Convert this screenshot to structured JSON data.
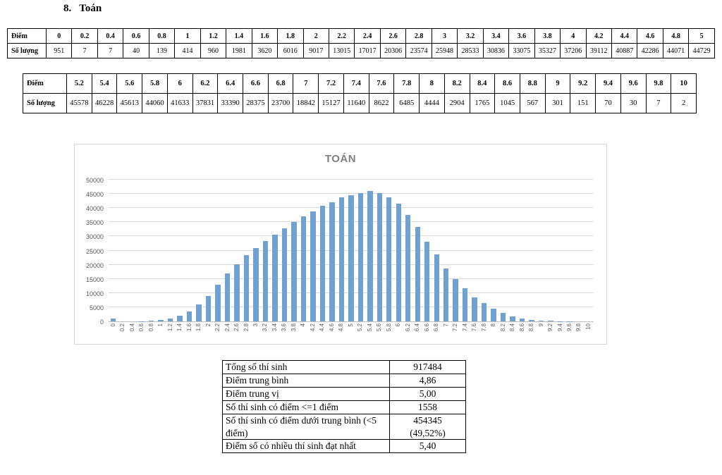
{
  "heading": {
    "number": "8.",
    "title": "Toán"
  },
  "score_table_1": {
    "row1_label": "Điểm",
    "row2_label": "Số lượng",
    "scores": [
      "0",
      "0.2",
      "0.4",
      "0.6",
      "0.8",
      "1",
      "1.2",
      "1.4",
      "1.6",
      "1.8",
      "2",
      "2.2",
      "2.4",
      "2.6",
      "2.8",
      "3",
      "3.2",
      "3.4",
      "3.6",
      "3.8",
      "4",
      "4.2",
      "4.4",
      "4.6",
      "4.8",
      "5"
    ],
    "counts": [
      "951",
      "7",
      "7",
      "40",
      "139",
      "414",
      "960",
      "1981",
      "3620",
      "6016",
      "9017",
      "13015",
      "17017",
      "20306",
      "23574",
      "25948",
      "28533",
      "30836",
      "33075",
      "35327",
      "37206",
      "39112",
      "40887",
      "42286",
      "44071",
      "44729"
    ]
  },
  "score_table_2": {
    "row1_label": "Điểm",
    "row2_label": "Số lượng",
    "scores": [
      "5.2",
      "5.4",
      "5.6",
      "5.8",
      "6",
      "6.2",
      "6.4",
      "6.6",
      "6.8",
      "7",
      "7.2",
      "7.4",
      "7.6",
      "7.8",
      "8",
      "8.2",
      "8.4",
      "8.6",
      "8.8",
      "9",
      "9.2",
      "9.4",
      "9.6",
      "9.8",
      "10"
    ],
    "counts": [
      "45578",
      "46228",
      "45613",
      "44060",
      "41633",
      "37831",
      "33390",
      "28375",
      "23700",
      "18842",
      "15127",
      "11640",
      "8622",
      "6485",
      "4444",
      "2904",
      "1765",
      "1045",
      "567",
      "301",
      "151",
      "70",
      "30",
      "7",
      "2"
    ]
  },
  "chart_data": {
    "type": "bar",
    "title": "TOÁN",
    "categories": [
      "0",
      "0.2",
      "0.4",
      "0.6",
      "0.8",
      "1",
      "1.2",
      "1.4",
      "1.6",
      "1.8",
      "2",
      "2.2",
      "2.4",
      "2.6",
      "2.8",
      "3",
      "3.2",
      "3.4",
      "3.6",
      "3.8",
      "4",
      "4.2",
      "4.4",
      "4.6",
      "4.8",
      "5",
      "5.2",
      "5.4",
      "5.6",
      "5.8",
      "6",
      "6.2",
      "6.4",
      "6.6",
      "6.8",
      "7",
      "7.2",
      "7.4",
      "7.6",
      "7.8",
      "8",
      "8.2",
      "8.4",
      "8.6",
      "8.8",
      "9",
      "9.2",
      "9.4",
      "9.6",
      "9.8",
      "10"
    ],
    "values": [
      951,
      7,
      7,
      40,
      139,
      414,
      960,
      1981,
      3620,
      6016,
      9017,
      13015,
      17017,
      20306,
      23574,
      25948,
      28533,
      30836,
      33075,
      35327,
      37206,
      39112,
      40887,
      42286,
      44071,
      44729,
      45578,
      46228,
      45613,
      44060,
      41633,
      37831,
      33390,
      28375,
      23700,
      18842,
      15127,
      11640,
      8622,
      6485,
      4444,
      2904,
      1765,
      1045,
      567,
      301,
      151,
      70,
      30,
      7,
      2
    ],
    "xlabel": "",
    "ylabel": "",
    "ylim": [
      0,
      50000
    ],
    "ytick_step": 5000,
    "bar_color": "#6fa1d2",
    "grid": true,
    "legend": "none"
  },
  "summary": {
    "rows": [
      {
        "label": "Tổng số thí sinh",
        "value": "917484"
      },
      {
        "label": "Điểm trung bình",
        "value": "4,86"
      },
      {
        "label": "Điểm trung vị",
        "value": "5,00"
      },
      {
        "label": "Số thí sinh có điểm <=1 điểm",
        "value": "1558"
      },
      {
        "label": "Số thí sinh có điểm dưới trung bình (<5 điểm)",
        "value": "454345\n(49,52%)"
      },
      {
        "label": "Điểm số có nhiều thí sinh đạt nhất",
        "value": "5,40"
      }
    ]
  }
}
